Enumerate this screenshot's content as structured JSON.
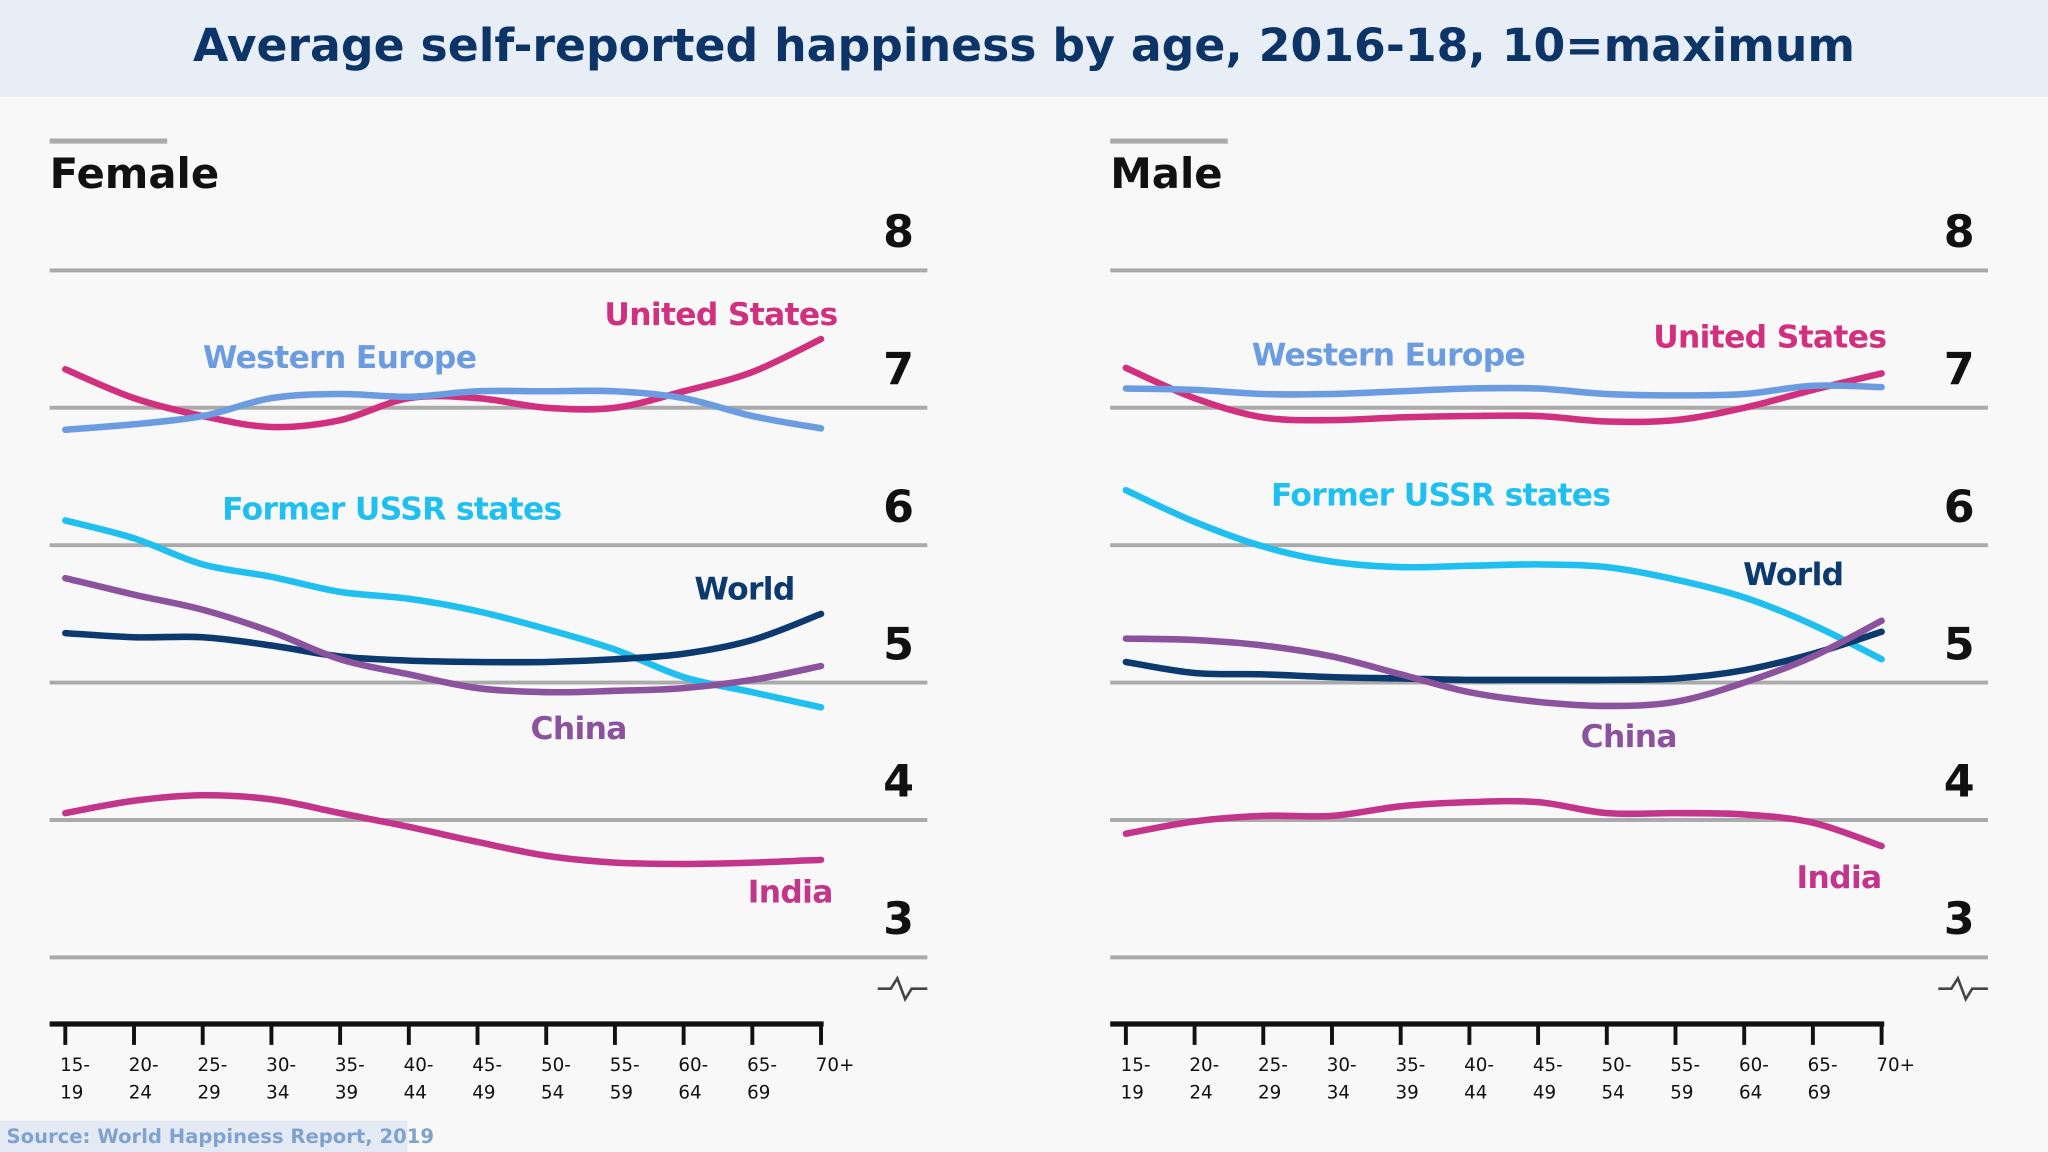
{
  "title": "Average self-reported happiness by age, 2016-18, 10=maximum",
  "source": "Source: World Happiness Report, 2019",
  "chart_data": [
    {
      "type": "line",
      "title": "Female",
      "categories": [
        "15-19",
        "20-24",
        "25-29",
        "30-34",
        "35-39",
        "40-44",
        "45-49",
        "50-54",
        "55-59",
        "60-64",
        "65-69",
        "70+"
      ],
      "ylim": [
        3,
        8
      ],
      "yticks": [
        3,
        4,
        5,
        6,
        7,
        8
      ],
      "grid": true,
      "series": [
        {
          "name": "United States",
          "color": "#d1307f",
          "values": [
            7.28,
            7.07,
            6.94,
            6.86,
            6.91,
            7.07,
            7.07,
            7.0,
            7.0,
            7.12,
            7.26,
            7.5
          ]
        },
        {
          "name": "Western Europe",
          "color": "#6b9ce0",
          "values": [
            6.84,
            6.88,
            6.94,
            7.07,
            7.1,
            7.08,
            7.12,
            7.12,
            7.12,
            7.07,
            6.94,
            6.85
          ]
        },
        {
          "name": "Former USSR states",
          "color": "#1fbff0",
          "values": [
            6.18,
            6.05,
            5.86,
            5.77,
            5.66,
            5.61,
            5.52,
            5.39,
            5.24,
            5.04,
            4.93,
            4.82
          ]
        },
        {
          "name": "World",
          "color": "#0c3a6e",
          "values": [
            5.36,
            5.33,
            5.33,
            5.27,
            5.19,
            5.16,
            5.15,
            5.15,
            5.17,
            5.21,
            5.31,
            5.5
          ]
        },
        {
          "name": "China",
          "color": "#8b529d",
          "values": [
            5.76,
            5.64,
            5.53,
            5.37,
            5.17,
            5.06,
            4.96,
            4.93,
            4.94,
            4.96,
            5.02,
            5.12
          ]
        },
        {
          "name": "India",
          "color": "#c2358b",
          "values": [
            4.05,
            4.14,
            4.18,
            4.15,
            4.05,
            3.95,
            3.84,
            3.74,
            3.69,
            3.68,
            3.69,
            3.71
          ]
        }
      ]
    },
    {
      "type": "line",
      "title": "Male",
      "categories": [
        "15-19",
        "20-24",
        "25-29",
        "30-34",
        "35-39",
        "40-44",
        "45-49",
        "50-54",
        "55-59",
        "60-64",
        "65-69",
        "70+"
      ],
      "ylim": [
        3,
        8
      ],
      "yticks": [
        3,
        4,
        5,
        6,
        7,
        8
      ],
      "grid": true,
      "series": [
        {
          "name": "United States",
          "color": "#d1307f",
          "values": [
            7.29,
            7.07,
            6.93,
            6.91,
            6.93,
            6.94,
            6.94,
            6.9,
            6.91,
            7.0,
            7.13,
            7.25
          ]
        },
        {
          "name": "Western Europe",
          "color": "#6b9ce0",
          "values": [
            7.14,
            7.13,
            7.1,
            7.1,
            7.12,
            7.14,
            7.14,
            7.1,
            7.09,
            7.1,
            7.16,
            7.15
          ]
        },
        {
          "name": "Former USSR states",
          "color": "#1fbff0",
          "values": [
            6.4,
            6.17,
            5.99,
            5.88,
            5.84,
            5.85,
            5.86,
            5.84,
            5.75,
            5.62,
            5.42,
            5.17
          ]
        },
        {
          "name": "World",
          "color": "#0c3a6e",
          "values": [
            5.15,
            5.07,
            5.06,
            5.04,
            5.03,
            5.02,
            5.02,
            5.02,
            5.03,
            5.09,
            5.21,
            5.37
          ]
        },
        {
          "name": "China",
          "color": "#8b529d",
          "values": [
            5.32,
            5.31,
            5.27,
            5.19,
            5.06,
            4.93,
            4.86,
            4.83,
            4.86,
            5.0,
            5.19,
            5.45
          ]
        },
        {
          "name": "India",
          "color": "#c2358b",
          "values": [
            3.9,
            3.99,
            4.03,
            4.03,
            4.1,
            4.13,
            4.13,
            4.05,
            4.05,
            4.04,
            3.98,
            3.81
          ]
        }
      ]
    }
  ]
}
